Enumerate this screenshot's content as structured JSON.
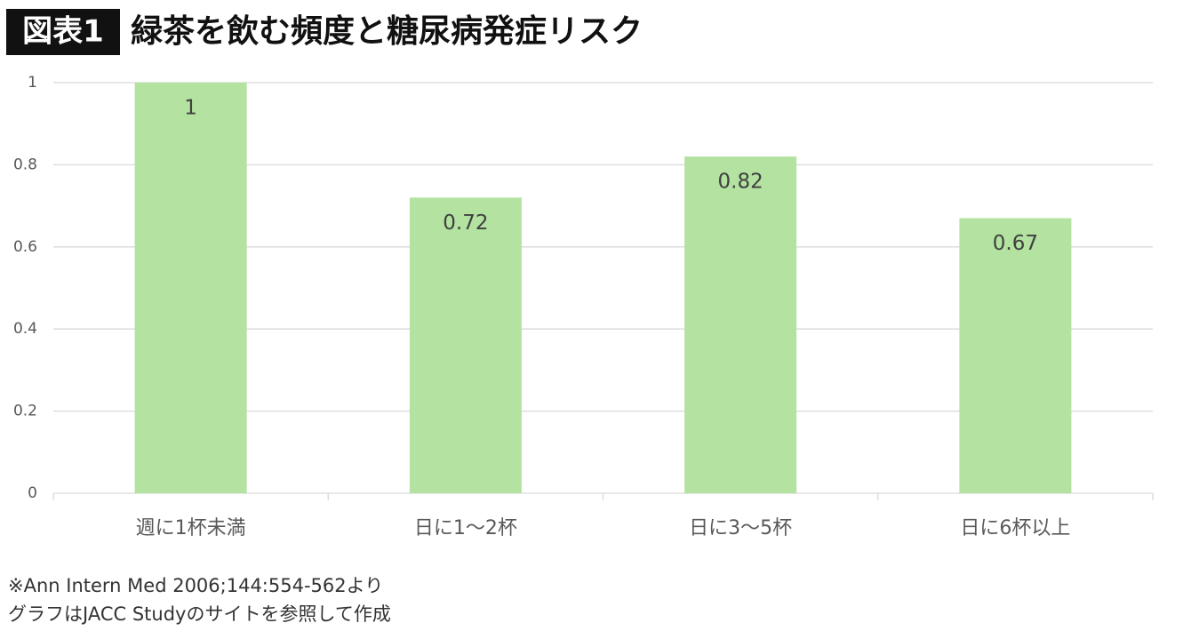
{
  "chart_data": {
    "type": "bar",
    "figure_label": "図表1",
    "title": "緑茶を飲む頻度と糖尿病発症リスク",
    "categories": [
      "週に1杯未満",
      "日に1〜2杯",
      "日に3〜5杯",
      "日に6杯以上"
    ],
    "values": [
      1,
      0.72,
      0.82,
      0.67
    ],
    "color": "#b3e2a1",
    "ylim": [
      0,
      1
    ],
    "yticks": [
      0,
      0.2,
      0.4,
      0.6,
      0.8,
      1
    ],
    "grid": true,
    "notes": [
      "※Ann Intern Med 2006;144:554-562より",
      "グラフはJACC Studyのサイトを参照して作成"
    ]
  }
}
